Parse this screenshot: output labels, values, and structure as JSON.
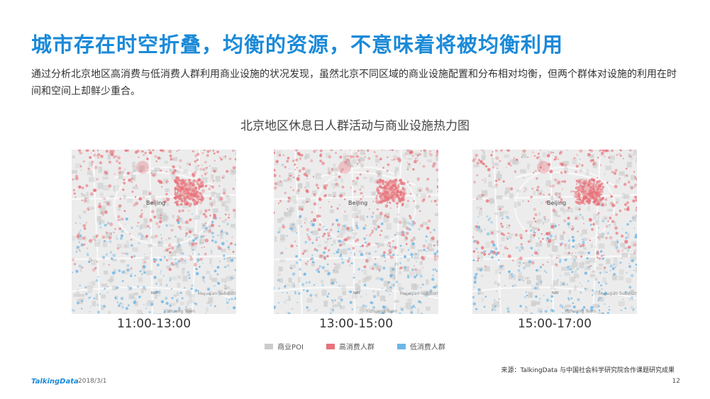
{
  "page": {
    "title": "城市存在时空折叠，均衡的资源，不意味着将被均衡利用",
    "description": "通过分析北京地区高消费与低消费人群利用商业设施的状况发现，虽然北京不同区域的商业设施配置和分布相对均衡，但两个群体对设施的利用在时间和空间上却鲜少重合。"
  },
  "figure": {
    "title": "北京地区休息日人群活动与商业设施热力图",
    "map_text": {
      "city": "Beijing",
      "south": "Yizhuang Town",
      "southeast": "Majuqiao Subdistrict",
      "airport": "NAY"
    },
    "panels": [
      {
        "label": "11:00-13:00"
      },
      {
        "label": "13:00-15:00"
      },
      {
        "label": "15:00-17:00"
      }
    ],
    "legend": [
      {
        "label": "商业POI",
        "color": "#cccccc"
      },
      {
        "label": "高消费人群",
        "color": "#e8737b"
      },
      {
        "label": "低消费人群",
        "color": "#6cb6e6"
      }
    ]
  },
  "footer": {
    "source": "来源：TalkingData 与中国社会科学研究院合作课题研究成果",
    "brand": "TalkingData",
    "date": "2018/3/1",
    "page_number": "12"
  }
}
